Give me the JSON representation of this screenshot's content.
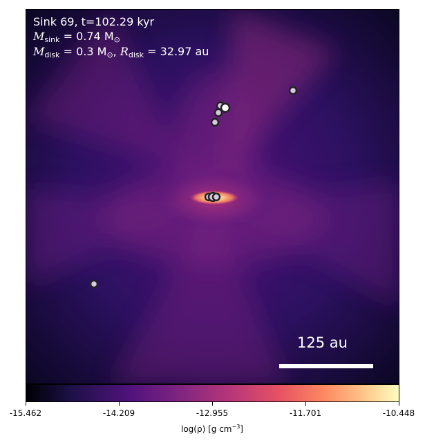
{
  "annotation": {
    "sink_line": "Sink 69, t=102.29 kyr",
    "m_sink_symbol": "M",
    "m_sink_sub": "sink",
    "m_sink_value": " = 0.74 M",
    "m_sink_sun": "⊙",
    "m_disk_symbol": "M",
    "m_disk_sub": "disk",
    "m_disk_value": " = 0.3 M",
    "m_disk_sun": "⊙",
    "r_disk_sep": ", ",
    "r_disk_symbol": "R",
    "r_disk_sub": "disk",
    "r_disk_value": " = 32.97 au"
  },
  "scalebar": {
    "label": "125 au"
  },
  "colorbar": {
    "ticks": [
      "-15.462",
      "-14.209",
      "-12.955",
      "-11.701",
      "-10.448"
    ],
    "label_prefix": "log(ρ) [g cm",
    "label_exp": "−3",
    "label_suffix": "]"
  },
  "colors": {
    "bright_core": "#fcfdbf",
    "sink_fill": "#d8c8e0",
    "sink_edge": "#222222"
  }
}
